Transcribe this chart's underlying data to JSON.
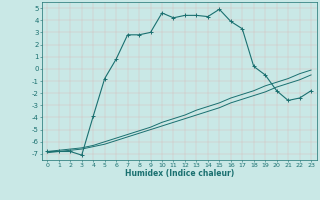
{
  "xlabel": "Humidex (Indice chaleur)",
  "ylabel": "",
  "xlim": [
    -0.5,
    23.5
  ],
  "ylim": [
    -7.5,
    5.5
  ],
  "xticks": [
    0,
    1,
    2,
    3,
    4,
    5,
    6,
    7,
    8,
    9,
    10,
    11,
    12,
    13,
    14,
    15,
    16,
    17,
    18,
    19,
    20,
    21,
    22,
    23
  ],
  "yticks": [
    -7,
    -6,
    -5,
    -4,
    -3,
    -2,
    -1,
    0,
    1,
    2,
    3,
    4,
    5
  ],
  "bg_color": "#c9e8e6",
  "line_color": "#1a7070",
  "grid_color": "#aed0ce",
  "curve1_x": [
    0,
    1,
    2,
    3,
    4,
    5,
    6,
    7,
    8,
    9,
    10,
    11,
    12,
    13,
    14,
    15,
    16,
    17,
    18,
    19,
    20,
    21,
    22,
    23
  ],
  "curve1_y": [
    -6.8,
    -6.8,
    -6.8,
    -7.1,
    -3.9,
    -0.8,
    0.8,
    2.8,
    2.8,
    3.0,
    4.6,
    4.2,
    4.4,
    4.4,
    4.3,
    4.9,
    3.9,
    3.3,
    0.2,
    -0.5,
    -1.8,
    -2.6,
    -2.4,
    -1.8
  ],
  "curve2_x": [
    0,
    1,
    2,
    3,
    4,
    5,
    6,
    7,
    8,
    9,
    10,
    11,
    12,
    13,
    14,
    15,
    16,
    17,
    18,
    19,
    20,
    21,
    22,
    23
  ],
  "curve2_y": [
    -6.8,
    -6.7,
    -6.6,
    -6.5,
    -6.3,
    -6.0,
    -5.7,
    -5.4,
    -5.1,
    -4.8,
    -4.4,
    -4.1,
    -3.8,
    -3.4,
    -3.1,
    -2.8,
    -2.4,
    -2.1,
    -1.8,
    -1.4,
    -1.1,
    -0.8,
    -0.4,
    -0.1
  ],
  "curve3_x": [
    0,
    1,
    2,
    3,
    4,
    5,
    6,
    7,
    8,
    9,
    10,
    11,
    12,
    13,
    14,
    15,
    16,
    17,
    18,
    19,
    20,
    21,
    22,
    23
  ],
  "curve3_y": [
    -6.9,
    -6.8,
    -6.7,
    -6.6,
    -6.4,
    -6.2,
    -5.9,
    -5.6,
    -5.3,
    -5.0,
    -4.7,
    -4.4,
    -4.1,
    -3.8,
    -3.5,
    -3.2,
    -2.8,
    -2.5,
    -2.2,
    -1.9,
    -1.5,
    -1.2,
    -0.9,
    -0.5
  ],
  "fig_width": 3.2,
  "fig_height": 2.0,
  "dpi": 100
}
